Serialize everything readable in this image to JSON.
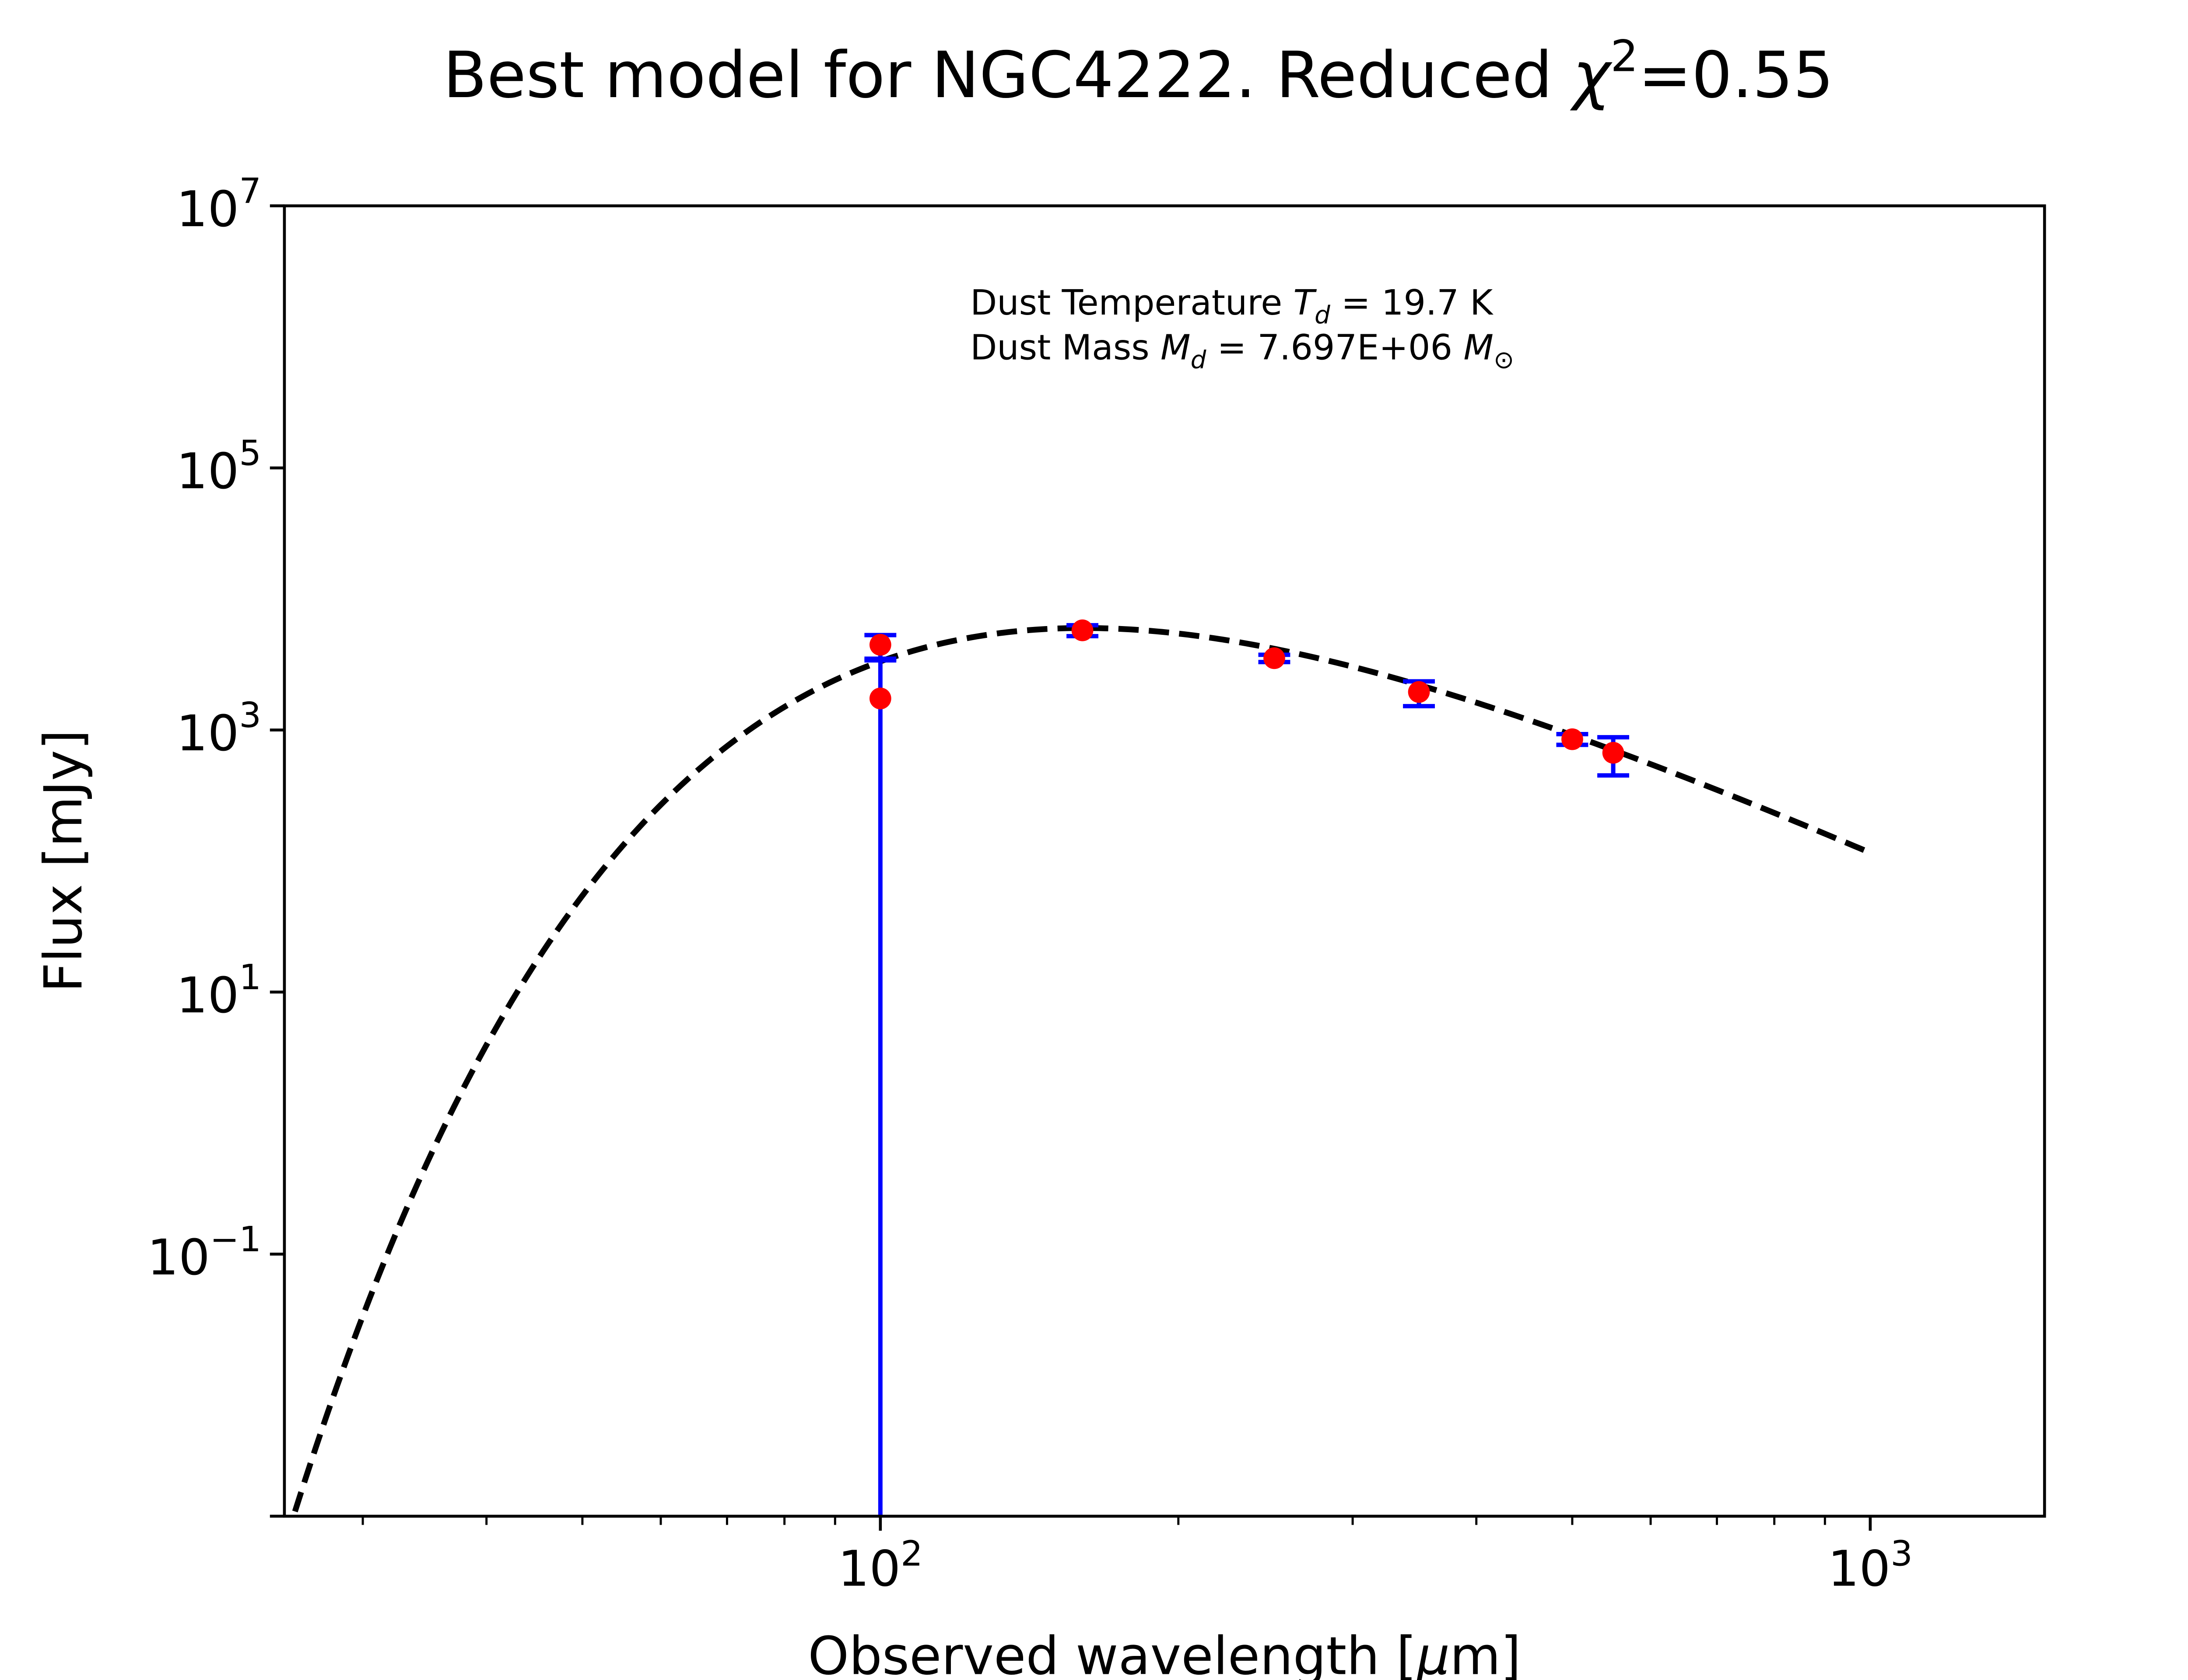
{
  "chart_data": {
    "type": "scatter",
    "title": "Best model for NGC4222. Reduced χ²=0.55",
    "title_parts": {
      "prefix": "Best model for NGC4222. Reduced ",
      "chi": "χ",
      "sup": "2",
      "suffix": "=0.55"
    },
    "xlabel": "Observed wavelength [μm]",
    "xlabel_parts": {
      "prefix": "Observed wavelength [",
      "mu": "μ",
      "suffix": "m]"
    },
    "ylabel": "Flux [mJy]",
    "xscale": "log",
    "yscale": "log",
    "xlim": [
      25,
      1500
    ],
    "ylim": [
      0.001,
      10000000
    ],
    "grid": false,
    "x_ticks": [
      {
        "value": 100,
        "base": "10",
        "exp": "2"
      },
      {
        "value": 1000,
        "base": "10",
        "exp": "3"
      }
    ],
    "y_ticks": [
      {
        "value": 10000000,
        "base": "10",
        "exp": "7"
      },
      {
        "value": 100000,
        "base": "10",
        "exp": "5"
      },
      {
        "value": 1000,
        "base": "10",
        "exp": "3"
      },
      {
        "value": 10,
        "base": "10",
        "exp": "1"
      },
      {
        "value": 0.1,
        "base": "10",
        "exp": "−1"
      }
    ],
    "annotation": {
      "line1": {
        "prefix": "Dust Temperature ",
        "sym": "T",
        "sub": "d",
        "suffix": " = 19.7 K"
      },
      "line2": {
        "prefix": "Dust Mass ",
        "sym": "M",
        "sub": "d",
        "middle": " = 7.697E+06 ",
        "sym2": "M",
        "sub2": "⊙"
      },
      "dust_temperature_K": 19.7,
      "dust_mass_Msun": 7697000
    },
    "series": [
      {
        "name": "observed",
        "kind": "errorbar",
        "marker_color": "#ff0000",
        "errorbar_color": "#0000ff",
        "points": [
          {
            "x": 100,
            "y": 4470,
            "ylo": 3400,
            "yhi": 5300
          },
          {
            "x": 100,
            "y": 1740,
            "ylo": 0.001,
            "yhi": 3500
          },
          {
            "x": 160,
            "y": 5760,
            "ylo": 5200,
            "yhi": 6300
          },
          {
            "x": 250,
            "y": 3530,
            "ylo": 3300,
            "yhi": 3750
          },
          {
            "x": 350,
            "y": 1950,
            "ylo": 1520,
            "yhi": 2350
          },
          {
            "x": 500,
            "y": 850,
            "ylo": 770,
            "yhi": 930
          },
          {
            "x": 550,
            "y": 670,
            "ylo": 450,
            "yhi": 880
          }
        ]
      },
      {
        "name": "best-fit model",
        "kind": "line",
        "color": "#000000",
        "dashed": true,
        "model": {
          "type": "modified-blackbody",
          "temperature_K": 19.7,
          "beta": 1.6,
          "x_range": [
            25,
            1000
          ],
          "norm_x": 160,
          "norm_y": 6000
        }
      }
    ]
  }
}
